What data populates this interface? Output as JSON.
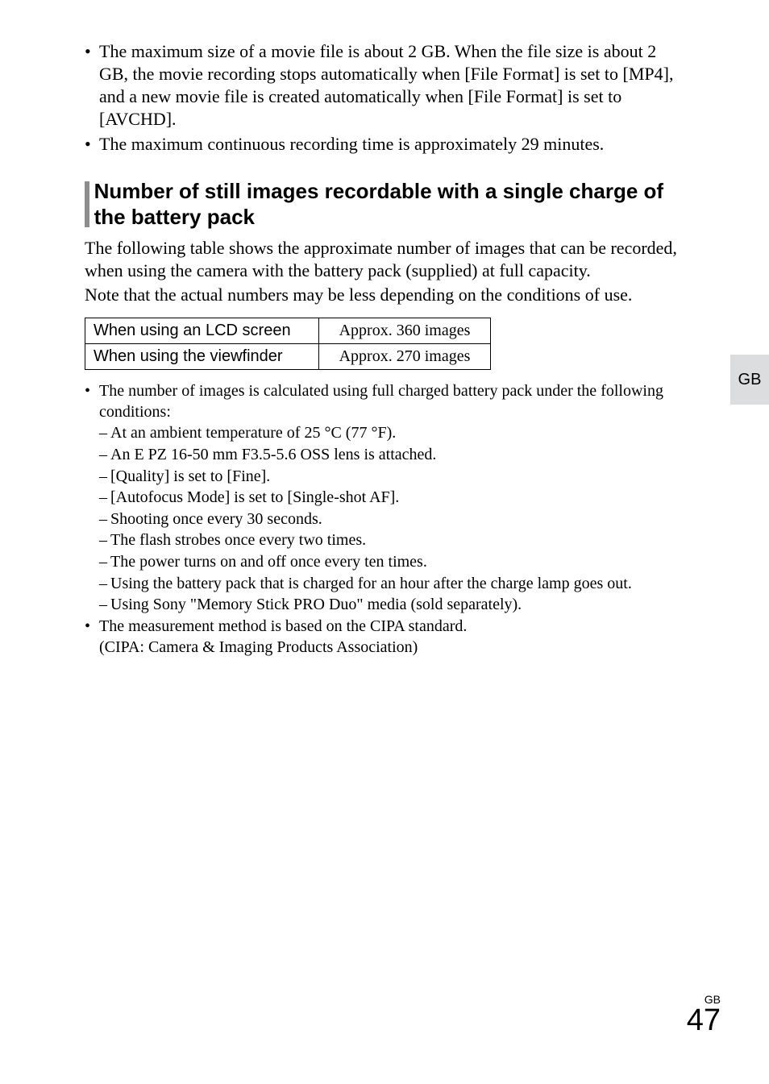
{
  "top_bullets": [
    "The maximum size of a movie file is about 2 GB. When the file size is about 2 GB, the movie recording stops automatically when [File Format] is set to [MP4], and a new movie file is created automatically when [File Format] is set to [AVCHD].",
    "The maximum continuous recording time is approximately 29 minutes."
  ],
  "section_heading": "Number of still images recordable with a single charge of the battery pack",
  "para1": "The following table shows the approximate number of images that can be recorded, when using the camera with the battery pack (supplied) at full capacity.",
  "para2": "Note that the actual numbers may be less depending on the conditions of use.",
  "table": {
    "rows": [
      {
        "label": "When using an LCD screen",
        "value": "Approx. 360 images"
      },
      {
        "label": "When using the viewfinder",
        "value": "Approx. 270 images"
      }
    ]
  },
  "lower": [
    {
      "text": "The number of images is calculated using full charged battery pack under the following conditions:",
      "subs": [
        "At an ambient temperature of 25 °C (77 °F).",
        "An E PZ 16-50 mm F3.5-5.6 OSS lens is attached.",
        "[Quality] is set to [Fine].",
        "[Autofocus Mode] is set to [Single-shot AF].",
        "Shooting once every 30 seconds.",
        "The flash strobes once every two times.",
        "The power turns on and off once every ten times.",
        "Using the battery pack that is charged for an hour after the charge lamp goes out.",
        "Using Sony \"Memory Stick PRO Duo\" media (sold separately)."
      ]
    },
    {
      "text": "The measurement method is based on the CIPA standard.",
      "continuation": "(CIPA: Camera & Imaging Products Association)"
    }
  ],
  "side_tab": "GB",
  "footer_small": "GB",
  "footer_big": "47",
  "glyphs": {
    "bullet": "•",
    "dash": "–"
  }
}
